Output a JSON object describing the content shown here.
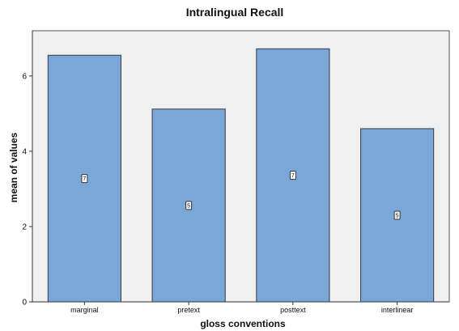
{
  "chart_data": {
    "type": "bar",
    "title": "Intralingual Recall",
    "xlabel": "gloss conventions",
    "ylabel": "mean of values",
    "categories": [
      "marginal",
      "pretext",
      "posttext",
      "interlinear"
    ],
    "values": [
      6.55,
      5.12,
      6.72,
      4.6
    ],
    "ylim": [
      0,
      7.2
    ],
    "yticks": [
      0,
      2,
      4,
      6
    ],
    "bar_color": "#7aa7d6",
    "plot_background": "#f0f0f0",
    "grid": false,
    "legend": "none",
    "labels": [
      "7",
      "5",
      "7",
      "5"
    ]
  }
}
